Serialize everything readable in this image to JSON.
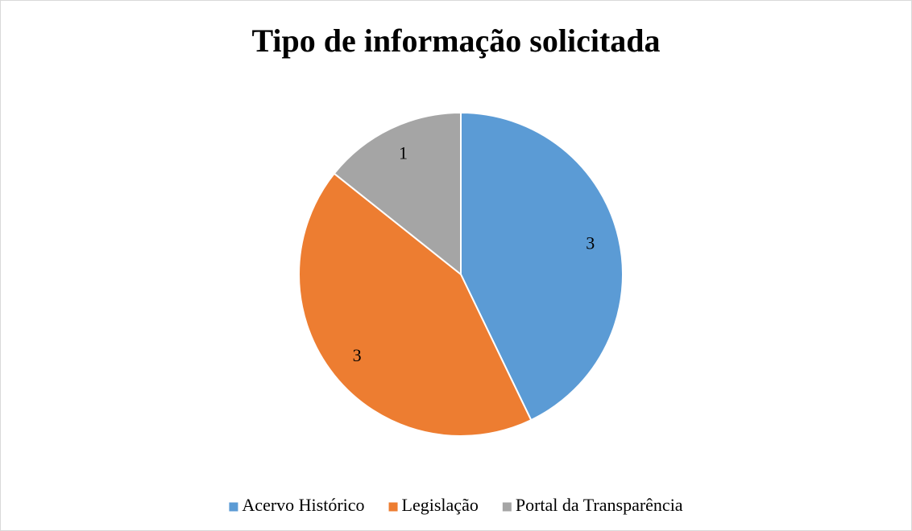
{
  "chart_data": {
    "type": "pie",
    "title": "Tipo de informação solicitada",
    "categories": [
      "Acervo Histórico",
      "Legislação",
      "Portal da Transparência"
    ],
    "values": [
      3,
      3,
      1
    ],
    "colors": [
      "#5b9bd5",
      "#ed7d31",
      "#a5a5a5"
    ],
    "legend": "bottom"
  }
}
